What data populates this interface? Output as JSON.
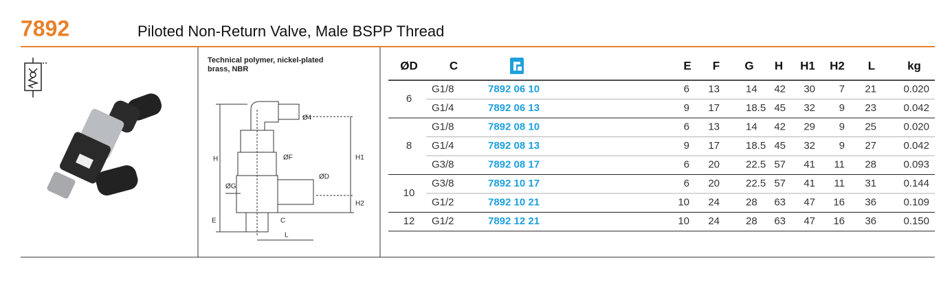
{
  "header": {
    "code": "7892",
    "title": "Piloted Non-Return Valve, Male BSPP Thread"
  },
  "material": [
    "Technical polymer, nickel-plated",
    "brass, NBR"
  ],
  "diagram": {
    "labels": [
      "Ø4",
      "H",
      "H1",
      "ØF",
      "ØD",
      "ØG",
      "H2",
      "E",
      "C",
      "L"
    ]
  },
  "table": {
    "columns": [
      "ØD",
      "C",
      "E",
      "F",
      "G",
      "H",
      "H1",
      "H2",
      "L",
      "kg"
    ],
    "groups": [
      {
        "od": "6",
        "rows": [
          [
            "G1/8",
            "7892 06 10",
            "6",
            "13",
            "14",
            "42",
            "30",
            "7",
            "21",
            "0.020"
          ],
          [
            "G1/4",
            "7892 06 13",
            "9",
            "17",
            "18.5",
            "45",
            "32",
            "9",
            "23",
            "0.042"
          ]
        ]
      },
      {
        "od": "8",
        "rows": [
          [
            "G1/8",
            "7892 08 10",
            "6",
            "13",
            "14",
            "42",
            "29",
            "9",
            "25",
            "0.020"
          ],
          [
            "G1/4",
            "7892 08 13",
            "9",
            "17",
            "18.5",
            "45",
            "32",
            "9",
            "27",
            "0.042"
          ],
          [
            "G3/8",
            "7892 08 17",
            "6",
            "20",
            "22.5",
            "57",
            "41",
            "11",
            "28",
            "0.093"
          ]
        ]
      },
      {
        "od": "10",
        "rows": [
          [
            "G3/8",
            "7892 10 17",
            "6",
            "20",
            "22.5",
            "57",
            "41",
            "11",
            "31",
            "0.144"
          ],
          [
            "G1/2",
            "7892 10 21",
            "10",
            "24",
            "28",
            "63",
            "47",
            "16",
            "36",
            "0.109"
          ]
        ]
      },
      {
        "od": "12",
        "rows": [
          [
            "G1/2",
            "7892 12 21",
            "10",
            "24",
            "28",
            "63",
            "47",
            "16",
            "36",
            "0.150"
          ]
        ]
      }
    ]
  }
}
